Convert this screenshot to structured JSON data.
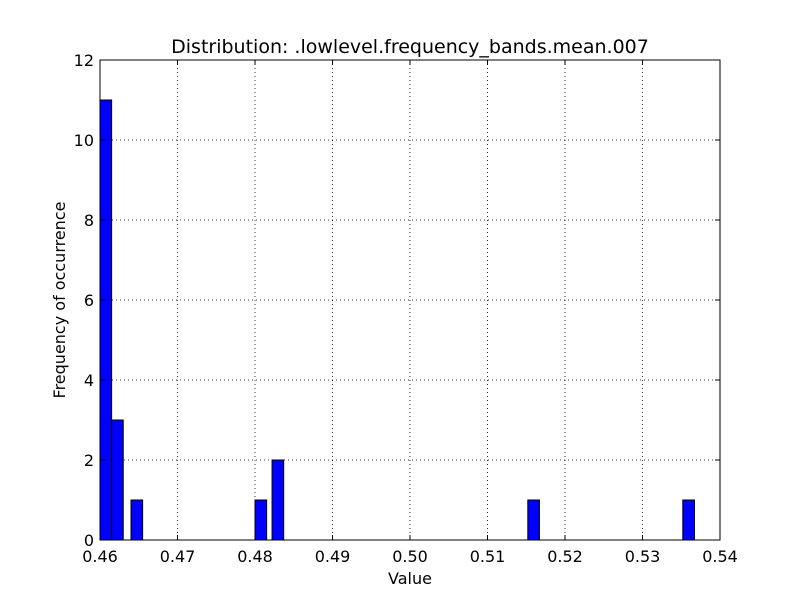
{
  "chart_data": {
    "type": "bar",
    "title": "Distribution: .lowlevel.frequency_bands.mean.007",
    "xlabel": "Value",
    "ylabel": "Frequency of occurrence",
    "xlim": [
      0.46,
      0.54
    ],
    "ylim": [
      0,
      12
    ],
    "xticks": [
      "0.46",
      "0.47",
      "0.48",
      "0.49",
      "0.50",
      "0.51",
      "0.52",
      "0.53",
      "0.54"
    ],
    "yticks": [
      "0",
      "2",
      "4",
      "6",
      "8",
      "10",
      "12"
    ],
    "grid": true,
    "bar_color": "#0000ff",
    "bins": [
      {
        "x0": 0.46,
        "x1": 0.4615,
        "count": 11
      },
      {
        "x0": 0.4615,
        "x1": 0.463,
        "count": 3
      },
      {
        "x0": 0.464,
        "x1": 0.4655,
        "count": 1
      },
      {
        "x0": 0.48,
        "x1": 0.4815,
        "count": 1
      },
      {
        "x0": 0.4822,
        "x1": 0.4837,
        "count": 2
      },
      {
        "x0": 0.5152,
        "x1": 0.5167,
        "count": 1
      },
      {
        "x0": 0.5352,
        "x1": 0.5367,
        "count": 1
      }
    ]
  }
}
